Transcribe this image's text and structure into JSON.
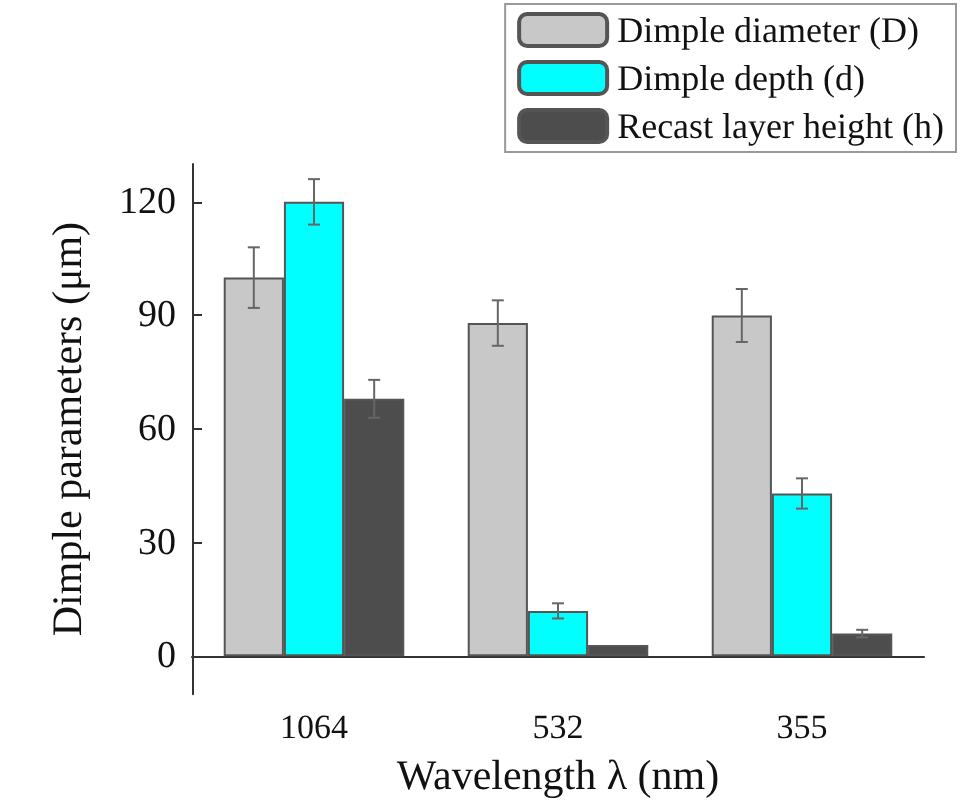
{
  "chart_data": {
    "type": "bar",
    "xlabel": "Wavelength λ (nm)",
    "ylabel": "Dimple parameters (μm)",
    "categories": [
      "1064",
      "532",
      "355"
    ],
    "series": [
      {
        "name": "Dimple diameter (D)",
        "color": "#c8c8c8",
        "values": [
          100,
          88,
          90
        ],
        "errors": [
          8,
          6,
          7
        ]
      },
      {
        "name": "Dimple depth (d)",
        "color": "#00ffff",
        "values": [
          120,
          12,
          43
        ],
        "errors": [
          6,
          2,
          4
        ]
      },
      {
        "name": "Recast layer height (h)",
        "color": "#4d4d4d",
        "values": [
          68,
          3,
          6
        ],
        "errors": [
          5,
          null,
          1
        ]
      }
    ],
    "ylim": [
      -10,
      130
    ],
    "yticks": [
      0,
      30,
      60,
      90,
      120
    ],
    "grid": false,
    "legend": "top right"
  }
}
